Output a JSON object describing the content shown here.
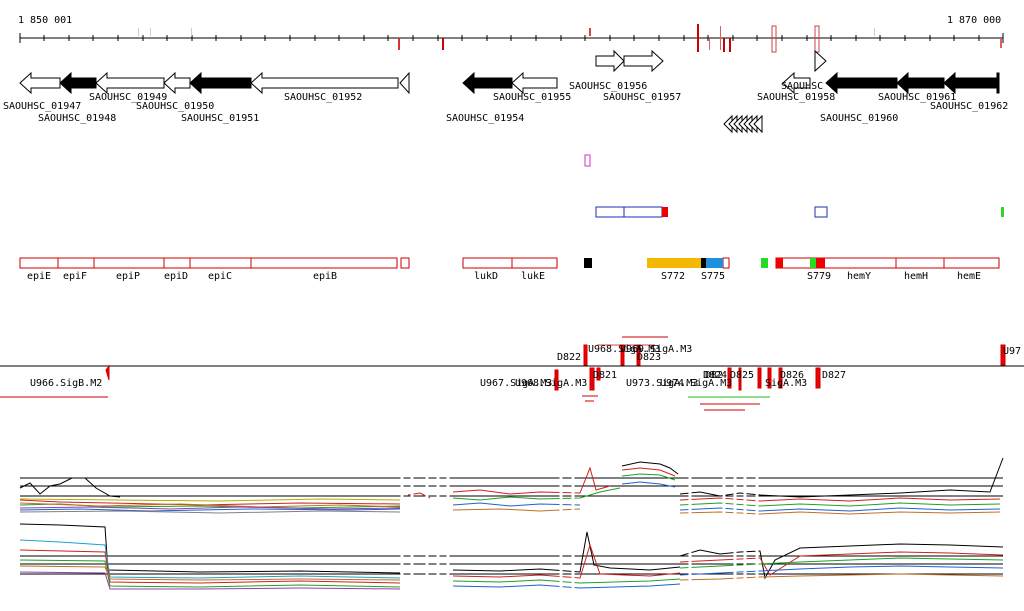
{
  "scale": {
    "start": "1 850 001",
    "end": "1 870 000"
  },
  "genes": [
    {
      "label": "SAOUHSC_01947"
    },
    {
      "label": "SAOUHSC_01948"
    },
    {
      "label": "SAOUHSC_01949"
    },
    {
      "label": "SAOUHSC_01950"
    },
    {
      "label": "SAOUHSC_01951"
    },
    {
      "label": "SAOUHSC_01952"
    },
    {
      "label": "SAOUHSC_01954"
    },
    {
      "label": "SAOUHSC_01955"
    },
    {
      "label": "SAOUHSC_01956"
    },
    {
      "label": "SAOUHSC_01957"
    },
    {
      "label": "SAOUHSC_01958"
    },
    {
      "label": "SAOUHSC_01960"
    },
    {
      "label": "SAOUHSC_01961"
    },
    {
      "label": "SAOUHSC_01962"
    }
  ],
  "features": [
    {
      "label": "epiE"
    },
    {
      "label": "epiF"
    },
    {
      "label": "epiP"
    },
    {
      "label": "epiD"
    },
    {
      "label": "epiC"
    },
    {
      "label": "epiB"
    },
    {
      "label": "lukD"
    },
    {
      "label": "lukE"
    },
    {
      "label": "S772"
    },
    {
      "label": "S775"
    },
    {
      "label": "S779"
    },
    {
      "label": "hemY"
    },
    {
      "label": "hemH"
    },
    {
      "label": "hemE"
    }
  ],
  "regulators": [
    {
      "label": "U966.SigB.M2"
    },
    {
      "label": "U967.SigA.M3"
    },
    {
      "label": "U973.SigA.M3"
    },
    {
      "label": "U97"
    },
    {
      "label": "D822"
    },
    {
      "label": "D823"
    },
    {
      "label": "D824"
    },
    {
      "label": "D825"
    },
    {
      "label": "D826"
    },
    {
      "label": "D827"
    },
    {
      "label": "U968.SigA.M3"
    },
    {
      "label": "D821"
    },
    {
      "label": "D82"
    },
    {
      "label": "SigA.M3"
    }
  ],
  "colors": {
    "gene_outline": "#000000",
    "feature_outline": "#cc0000",
    "box_blue": "#1f2fb0",
    "orange": "#f5b800",
    "cyan": "#1e90e0",
    "green": "#22dd22",
    "red": "#ee0000",
    "purple": "#cc33cc"
  }
}
